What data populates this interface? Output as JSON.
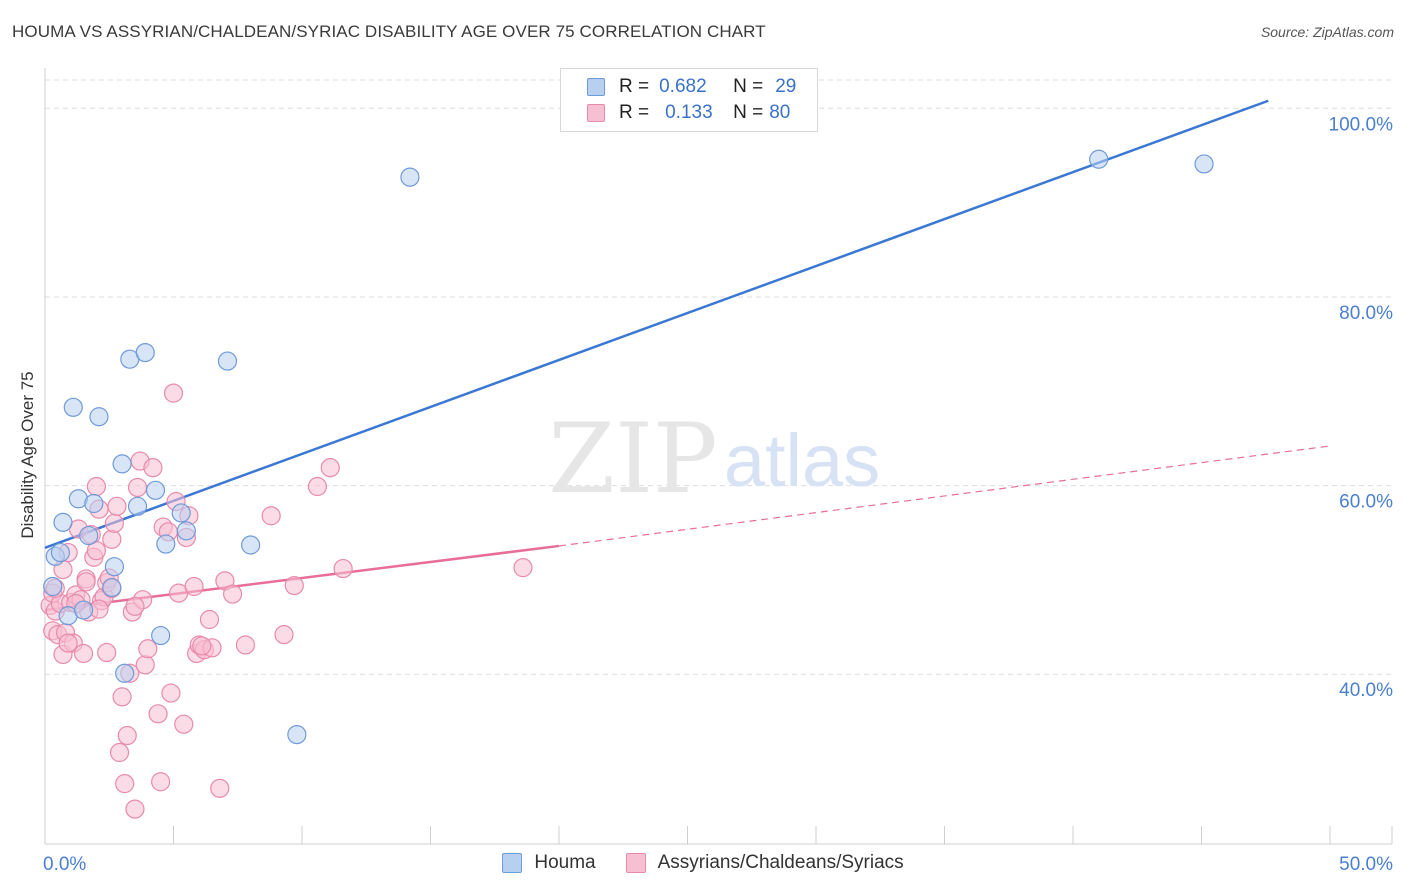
{
  "title": "HOUMA VS ASSYRIAN/CHALDEAN/SYRIAC DISABILITY AGE OVER 75 CORRELATION CHART",
  "source": "Source: ZipAtlas.com",
  "watermark": {
    "part1": "ZIP",
    "part2": "atlas"
  },
  "colors": {
    "blue": "#3a78d4",
    "blue_fill": "#b8d0f0",
    "pink": "#e86d98",
    "pink_fill": "#f7bfd2",
    "axis_label": "#4a7fd0",
    "grid": "#dddddd"
  },
  "legend": {
    "rows": [
      {
        "r_label": "R =",
        "r_value": "0.682",
        "n_label": "N =",
        "n_value": "29"
      },
      {
        "r_label": "R =",
        "r_value": "0.133",
        "n_label": "N =",
        "n_value": "80"
      }
    ]
  },
  "bottom_legend": [
    "Houma",
    "Assyrians/Chaldeans/Syriacs"
  ],
  "chart_data": {
    "type": "scatter",
    "title": "HOUMA VS ASSYRIAN/CHALDEAN/SYRIAC DISABILITY AGE OVER 75 CORRELATION CHART",
    "xlabel": "",
    "ylabel": "Disability Age Over 75",
    "xlim": [
      0,
      50
    ],
    "ylim": [
      22,
      103
    ],
    "x_tick_labels": [
      "0.0%",
      "50.0%"
    ],
    "y_ticks": [
      40,
      60,
      80,
      100
    ],
    "y_tick_labels": [
      "40.0%",
      "60.0%",
      "80.0%",
      "100.0%"
    ],
    "grid": true,
    "series": [
      {
        "name": "Houma",
        "color": "#3a78d4",
        "points": [
          [
            0.3,
            49.3
          ],
          [
            0.4,
            52.5
          ],
          [
            0.6,
            52.9
          ],
          [
            0.7,
            56.1
          ],
          [
            0.9,
            46.2
          ],
          [
            1.1,
            68.3
          ],
          [
            1.3,
            58.6
          ],
          [
            1.5,
            46.8
          ],
          [
            1.7,
            54.7
          ],
          [
            1.9,
            58.1
          ],
          [
            2.1,
            67.3
          ],
          [
            2.6,
            49.2
          ],
          [
            2.7,
            51.4
          ],
          [
            3.0,
            62.3
          ],
          [
            3.1,
            40.1
          ],
          [
            3.3,
            73.4
          ],
          [
            3.6,
            57.8
          ],
          [
            3.9,
            74.1
          ],
          [
            4.3,
            59.5
          ],
          [
            4.5,
            44.1
          ],
          [
            4.7,
            53.8
          ],
          [
            5.3,
            57.1
          ],
          [
            5.5,
            55.2
          ],
          [
            7.1,
            73.2
          ],
          [
            8.0,
            53.7
          ],
          [
            9.8,
            33.6
          ],
          [
            14.2,
            92.7
          ],
          [
            41.0,
            94.6
          ],
          [
            45.1,
            94.1
          ]
        ],
        "trend": {
          "x": [
            0,
            47.6
          ],
          "y": [
            53.4,
            100.8
          ],
          "style": "solid"
        }
      },
      {
        "name": "Assyrians/Chaldeans/Syriacs",
        "color": "#e86d98",
        "points": [
          [
            0.2,
            47.3
          ],
          [
            0.3,
            44.6
          ],
          [
            0.3,
            48.6
          ],
          [
            0.4,
            46.7
          ],
          [
            0.5,
            44.2
          ],
          [
            0.6,
            47.5
          ],
          [
            0.7,
            51.1
          ],
          [
            0.7,
            42.1
          ],
          [
            0.8,
            44.4
          ],
          [
            0.9,
            52.9
          ],
          [
            1.0,
            47.6
          ],
          [
            1.1,
            43.3
          ],
          [
            1.2,
            48.4
          ],
          [
            1.3,
            55.4
          ],
          [
            1.4,
            47.9
          ],
          [
            1.5,
            42.2
          ],
          [
            1.6,
            50.1
          ],
          [
            1.6,
            49.8
          ],
          [
            1.7,
            46.6
          ],
          [
            1.8,
            54.8
          ],
          [
            1.9,
            52.4
          ],
          [
            2.0,
            53.1
          ],
          [
            2.0,
            59.9
          ],
          [
            2.1,
            57.5
          ],
          [
            2.2,
            47.8
          ],
          [
            2.3,
            48.2
          ],
          [
            2.4,
            49.7
          ],
          [
            2.5,
            50.2
          ],
          [
            2.6,
            49.1
          ],
          [
            2.6,
            54.3
          ],
          [
            2.7,
            56.0
          ],
          [
            2.8,
            57.8
          ],
          [
            2.9,
            31.7
          ],
          [
            3.0,
            37.6
          ],
          [
            3.1,
            28.4
          ],
          [
            3.2,
            33.5
          ],
          [
            3.3,
            40.1
          ],
          [
            3.4,
            46.6
          ],
          [
            3.5,
            25.7
          ],
          [
            3.6,
            59.8
          ],
          [
            3.7,
            62.6
          ],
          [
            3.8,
            47.9
          ],
          [
            3.9,
            41.0
          ],
          [
            4.0,
            42.7
          ],
          [
            4.2,
            61.9
          ],
          [
            4.4,
            35.8
          ],
          [
            4.5,
            28.6
          ],
          [
            4.6,
            55.6
          ],
          [
            4.8,
            55.1
          ],
          [
            4.9,
            38.0
          ],
          [
            5.0,
            69.8
          ],
          [
            5.1,
            58.3
          ],
          [
            5.2,
            48.6
          ],
          [
            5.4,
            34.7
          ],
          [
            5.5,
            54.5
          ],
          [
            5.6,
            56.8
          ],
          [
            5.8,
            49.3
          ],
          [
            5.9,
            42.2
          ],
          [
            6.0,
            43.1
          ],
          [
            6.2,
            42.6
          ],
          [
            6.4,
            45.8
          ],
          [
            6.5,
            42.8
          ],
          [
            6.8,
            27.9
          ],
          [
            7.0,
            49.9
          ],
          [
            7.3,
            48.5
          ],
          [
            7.8,
            43.1
          ],
          [
            8.8,
            56.8
          ],
          [
            9.3,
            44.2
          ],
          [
            9.7,
            49.4
          ],
          [
            10.6,
            59.9
          ],
          [
            11.1,
            61.9
          ],
          [
            11.6,
            51.2
          ],
          [
            18.6,
            51.3
          ],
          [
            0.4,
            49.1
          ],
          [
            0.9,
            43.3
          ],
          [
            1.2,
            47.5
          ],
          [
            2.1,
            46.9
          ],
          [
            2.4,
            42.3
          ],
          [
            3.5,
            47.2
          ],
          [
            6.1,
            43.0
          ]
        ],
        "trend": {
          "x": [
            0,
            20
          ],
          "y": [
            46.8,
            53.6
          ],
          "style": "solid"
        },
        "trend_extension": {
          "x": [
            20,
            50
          ],
          "y": [
            53.6,
            64.2
          ],
          "style": "dashed"
        }
      }
    ]
  }
}
